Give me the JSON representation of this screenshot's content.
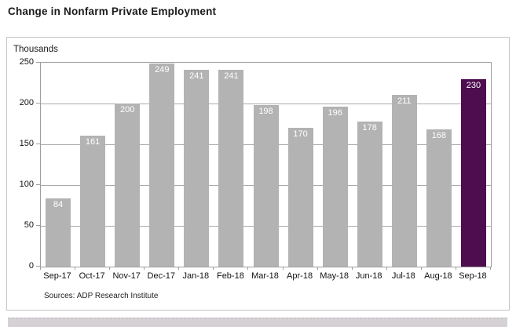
{
  "page": {
    "title": "Change in Nonfarm Private Employment",
    "source_note": "Sources: ADP Research Institute"
  },
  "chart_data": {
    "type": "bar",
    "title": "Change in Nonfarm Private Employment",
    "unit_label": "Thousands",
    "categories": [
      "Sep-17",
      "Oct-17",
      "Nov-17",
      "Dec-17",
      "Jan-18",
      "Feb-18",
      "Mar-18",
      "Apr-18",
      "May-18",
      "Jun-18",
      "Jul-18",
      "Aug-18",
      "Sep-18"
    ],
    "values": [
      84,
      161,
      200,
      249,
      241,
      241,
      198,
      170,
      196,
      178,
      211,
      168,
      230
    ],
    "ylabel": "Thousands",
    "ylim": [
      0,
      250
    ],
    "yticks": [
      0,
      50,
      100,
      150,
      200,
      250
    ],
    "grid": true,
    "legend": "none",
    "value_label_style": "inside-top-white",
    "bar_color": "#b3b3b3",
    "highlight_color": "#4d0d4f",
    "highlight_index": 12,
    "source": "Sources: ADP Research Institute"
  }
}
